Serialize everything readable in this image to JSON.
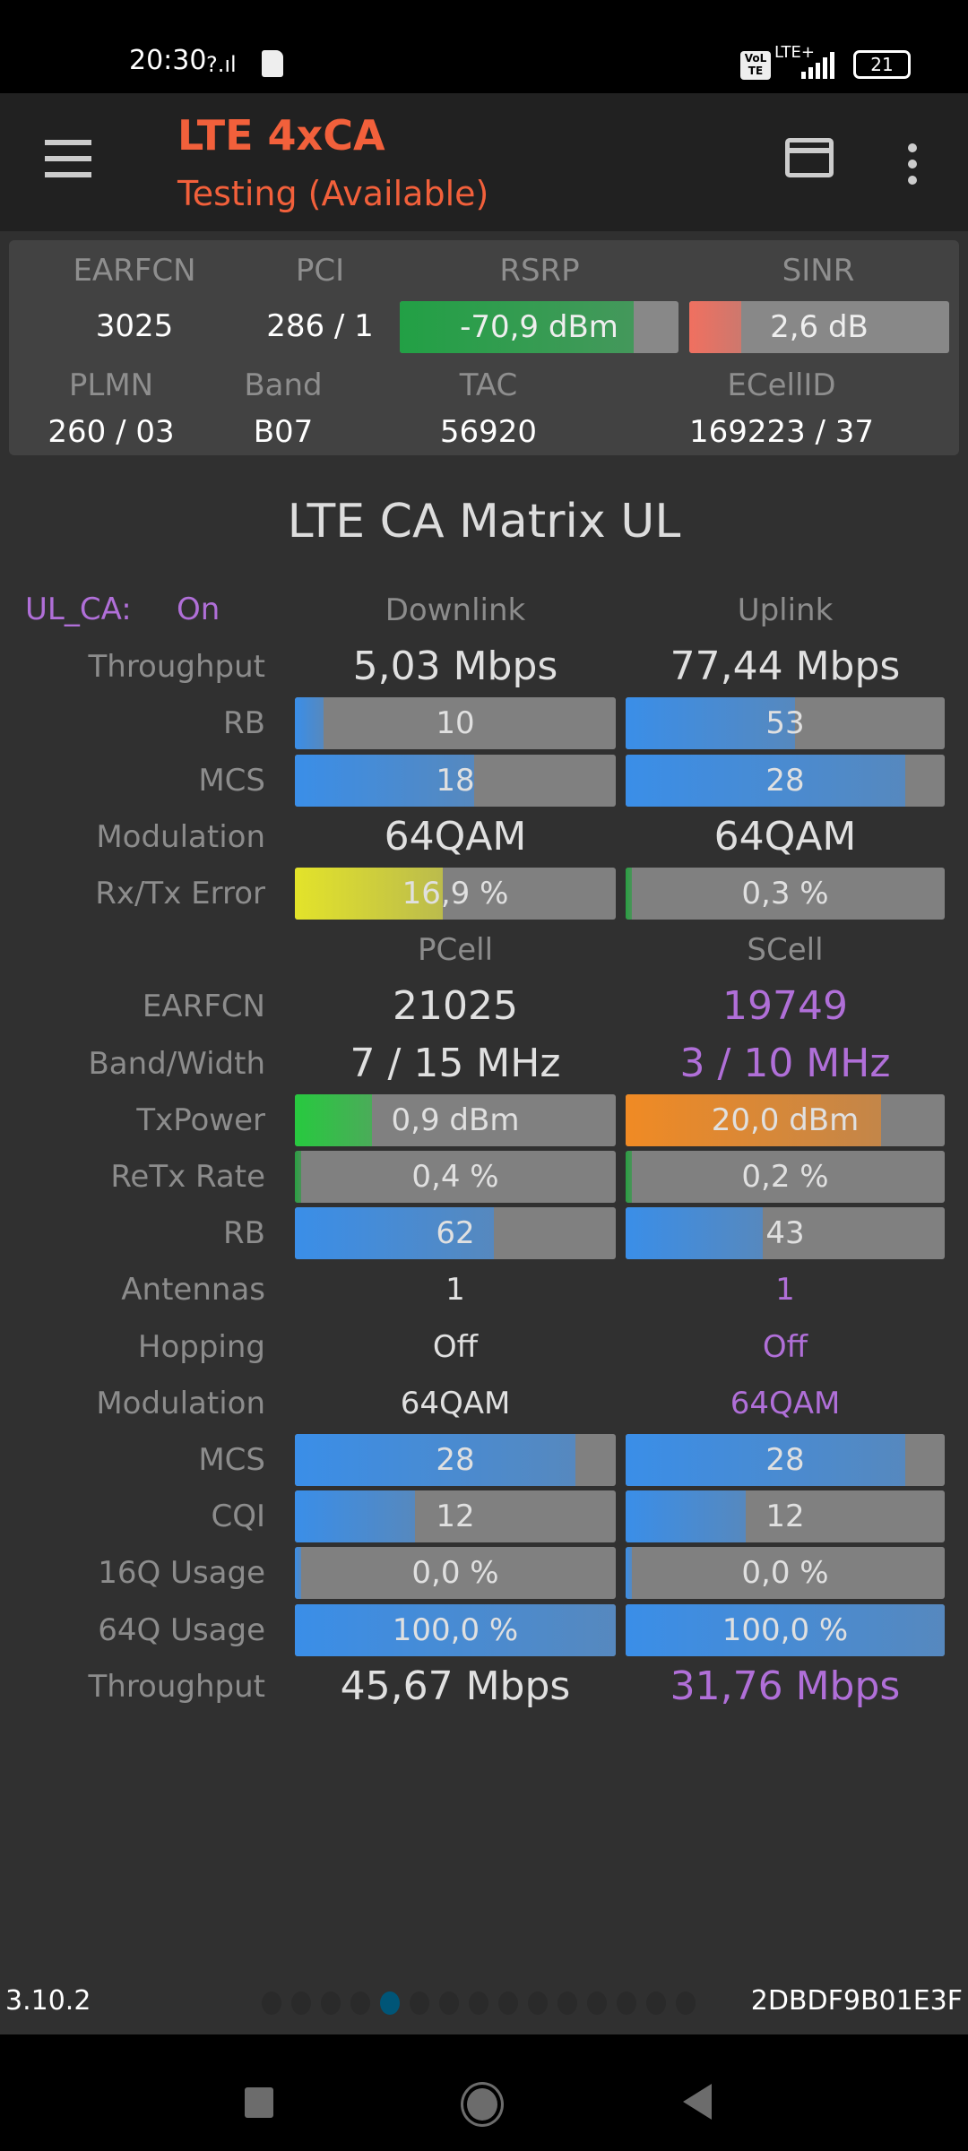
{
  "status_bar": {
    "time": "20:30",
    "battery": "21",
    "network": "LTE+",
    "volte": "VoLTE"
  },
  "app_bar": {
    "title": "LTE 4xCA",
    "subtitle": "Testing (Available)",
    "menu_icon": "hamburger-icon",
    "card_icon": "card-icon",
    "more_icon": "more-vert-icon"
  },
  "info": {
    "labels1": [
      "EARFCN",
      "PCI",
      "RSRP",
      "SINR"
    ],
    "earfcn": "3025",
    "pci": "286 / 1",
    "rsrp": {
      "text": "-70,9 dBm",
      "fill": 0.84,
      "color": "#22a045"
    },
    "sinr": {
      "text": "2,6 dB",
      "fill": 0.2,
      "color": "#f07060"
    },
    "labels2": [
      "PLMN",
      "Band",
      "TAC",
      "ECellID"
    ],
    "values2": [
      "260 / 03",
      "B07",
      "56920",
      "169223 / 37"
    ]
  },
  "matrix": {
    "title": "LTE CA Matrix UL",
    "ul_ca_label": "UL_CA:",
    "ul_ca_value": "On",
    "colors": {
      "label": "#8c8c8c",
      "value": "#e0e0e0",
      "scell": "#b06fd8",
      "blue": "#3a8ee8",
      "green": "#27c93f",
      "orange": "#f08a24",
      "yellow": "#e3e32a"
    },
    "rows": [
      {
        "label": "",
        "kind": "hdr",
        "cells": [
          {
            "text": "Downlink"
          },
          {
            "text": "Uplink"
          }
        ]
      },
      {
        "label": "Throughput",
        "kind": "big",
        "cells": [
          {
            "text": "5,03 Mbps"
          },
          {
            "text": "77,44 Mbps"
          }
        ]
      },
      {
        "label": "RB",
        "kind": "bar",
        "cells": [
          {
            "text": "10",
            "fill": 0.09,
            "color": "#3a8ee8"
          },
          {
            "text": "53",
            "fill": 0.53,
            "color": "#3a8ee8"
          }
        ]
      },
      {
        "label": "MCS",
        "kind": "bar",
        "cells": [
          {
            "text": "18",
            "fill": 0.56,
            "color": "#3a8ee8"
          },
          {
            "text": "28",
            "fill": 0.875,
            "color": "#3a8ee8"
          }
        ]
      },
      {
        "label": "Modulation",
        "kind": "big",
        "cells": [
          {
            "text": "64QAM"
          },
          {
            "text": "64QAM"
          }
        ]
      },
      {
        "label": "Rx/Tx Error",
        "kind": "bar",
        "cells": [
          {
            "text": "16,9 %",
            "fill": 0.46,
            "color": "#e3e32a"
          },
          {
            "text": "0,3 %",
            "fill": 0.02,
            "color": "#27a040"
          }
        ]
      },
      {
        "label": "",
        "kind": "hdr",
        "cells": [
          {
            "text": "PCell"
          },
          {
            "text": "SCell"
          }
        ]
      },
      {
        "label": "EARFCN",
        "kind": "big",
        "scell": true,
        "cells": [
          {
            "text": "21025"
          },
          {
            "text": "19749"
          }
        ]
      },
      {
        "label": "Band/Width",
        "kind": "big",
        "scell": true,
        "cells": [
          {
            "text": "7 / 15 MHz"
          },
          {
            "text": "3 / 10 MHz"
          }
        ]
      },
      {
        "label": "TxPower",
        "kind": "bar",
        "cells": [
          {
            "text": "0,9 dBm",
            "fill": 0.24,
            "color": "#27c93f"
          },
          {
            "text": "20,0 dBm",
            "fill": 0.8,
            "color": "#f08a24"
          }
        ]
      },
      {
        "label": "ReTx Rate",
        "kind": "bar",
        "cells": [
          {
            "text": "0,4 %",
            "fill": 0.02,
            "color": "#27a040"
          },
          {
            "text": "0,2 %",
            "fill": 0.02,
            "color": "#27a040"
          }
        ]
      },
      {
        "label": "RB",
        "kind": "bar",
        "cells": [
          {
            "text": "62",
            "fill": 0.62,
            "color": "#3a8ee8"
          },
          {
            "text": "43",
            "fill": 0.43,
            "color": "#3a8ee8"
          }
        ]
      },
      {
        "label": "Antennas",
        "kind": "text",
        "scell": true,
        "cells": [
          {
            "text": "1"
          },
          {
            "text": "1"
          }
        ]
      },
      {
        "label": "Hopping",
        "kind": "text",
        "scell": true,
        "cells": [
          {
            "text": "Off"
          },
          {
            "text": "Off"
          }
        ]
      },
      {
        "label": "Modulation",
        "kind": "text",
        "scell": true,
        "cells": [
          {
            "text": "64QAM"
          },
          {
            "text": "64QAM"
          }
        ]
      },
      {
        "label": "MCS",
        "kind": "bar",
        "cells": [
          {
            "text": "28",
            "fill": 0.875,
            "color": "#3a8ee8"
          },
          {
            "text": "28",
            "fill": 0.875,
            "color": "#3a8ee8"
          }
        ]
      },
      {
        "label": "CQI",
        "kind": "bar",
        "cells": [
          {
            "text": "12",
            "fill": 0.375,
            "color": "#3a8ee8"
          },
          {
            "text": "12",
            "fill": 0.375,
            "color": "#3a8ee8"
          }
        ]
      },
      {
        "label": "16Q Usage",
        "kind": "bar",
        "cells": [
          {
            "text": "0,0 %",
            "fill": 0.02,
            "color": "#3a8ee8"
          },
          {
            "text": "0,0 %",
            "fill": 0.02,
            "color": "#3a8ee8"
          }
        ]
      },
      {
        "label": "64Q Usage",
        "kind": "bar",
        "cells": [
          {
            "text": "100,0 %",
            "fill": 1.0,
            "color": "#3a8ee8"
          },
          {
            "text": "100,0 %",
            "fill": 1.0,
            "color": "#3a8ee8"
          }
        ]
      },
      {
        "label": "Throughput",
        "kind": "big",
        "scell": true,
        "cells": [
          {
            "text": "45,67 Mbps"
          },
          {
            "text": "31,76 Mbps"
          }
        ]
      }
    ]
  },
  "footer": {
    "version": "3.10.2",
    "device_id": "2DBDF9B01E3F",
    "page_count": 15,
    "active_page": 5,
    "active_color": "#005577"
  },
  "nav": {
    "recents_icon": "square-icon",
    "home_icon": "home-circle-icon",
    "back_icon": "back-triangle-icon"
  }
}
